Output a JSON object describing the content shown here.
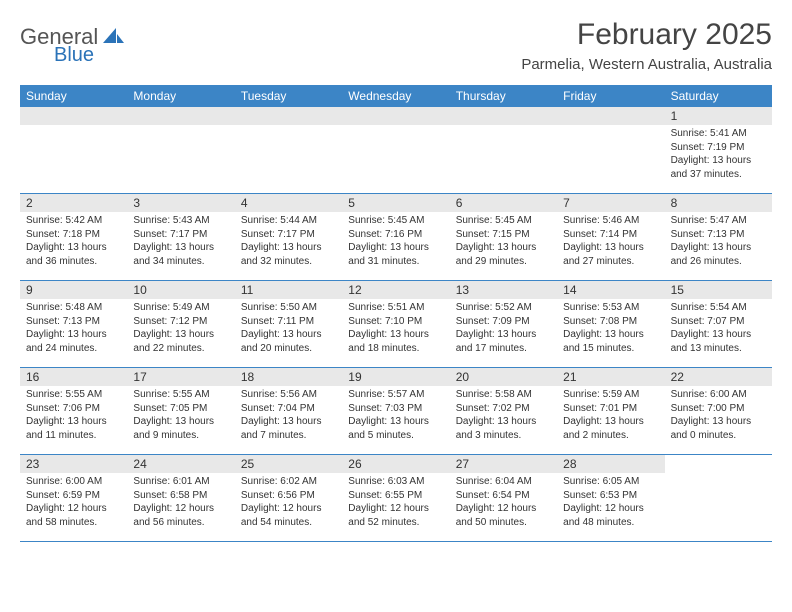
{
  "logo": {
    "text1": "General",
    "text2": "Blue"
  },
  "title": "February 2025",
  "location": "Parmelia, Western Australia, Australia",
  "colors": {
    "header_bg": "#3c85c6",
    "header_text": "#ffffff",
    "daynum_bg": "#e8e8e8",
    "border": "#3c85c6",
    "text": "#333333",
    "logo_gray": "#555555",
    "logo_blue": "#2b73b8"
  },
  "dayNames": [
    "Sunday",
    "Monday",
    "Tuesday",
    "Wednesday",
    "Thursday",
    "Friday",
    "Saturday"
  ],
  "weeks": [
    [
      {
        "empty": true
      },
      {
        "empty": true
      },
      {
        "empty": true
      },
      {
        "empty": true
      },
      {
        "empty": true
      },
      {
        "empty": true
      },
      {
        "day": "1",
        "sunrise": "Sunrise: 5:41 AM",
        "sunset": "Sunset: 7:19 PM",
        "daylight1": "Daylight: 13 hours",
        "daylight2": "and 37 minutes."
      }
    ],
    [
      {
        "day": "2",
        "sunrise": "Sunrise: 5:42 AM",
        "sunset": "Sunset: 7:18 PM",
        "daylight1": "Daylight: 13 hours",
        "daylight2": "and 36 minutes."
      },
      {
        "day": "3",
        "sunrise": "Sunrise: 5:43 AM",
        "sunset": "Sunset: 7:17 PM",
        "daylight1": "Daylight: 13 hours",
        "daylight2": "and 34 minutes."
      },
      {
        "day": "4",
        "sunrise": "Sunrise: 5:44 AM",
        "sunset": "Sunset: 7:17 PM",
        "daylight1": "Daylight: 13 hours",
        "daylight2": "and 32 minutes."
      },
      {
        "day": "5",
        "sunrise": "Sunrise: 5:45 AM",
        "sunset": "Sunset: 7:16 PM",
        "daylight1": "Daylight: 13 hours",
        "daylight2": "and 31 minutes."
      },
      {
        "day": "6",
        "sunrise": "Sunrise: 5:45 AM",
        "sunset": "Sunset: 7:15 PM",
        "daylight1": "Daylight: 13 hours",
        "daylight2": "and 29 minutes."
      },
      {
        "day": "7",
        "sunrise": "Sunrise: 5:46 AM",
        "sunset": "Sunset: 7:14 PM",
        "daylight1": "Daylight: 13 hours",
        "daylight2": "and 27 minutes."
      },
      {
        "day": "8",
        "sunrise": "Sunrise: 5:47 AM",
        "sunset": "Sunset: 7:13 PM",
        "daylight1": "Daylight: 13 hours",
        "daylight2": "and 26 minutes."
      }
    ],
    [
      {
        "day": "9",
        "sunrise": "Sunrise: 5:48 AM",
        "sunset": "Sunset: 7:13 PM",
        "daylight1": "Daylight: 13 hours",
        "daylight2": "and 24 minutes."
      },
      {
        "day": "10",
        "sunrise": "Sunrise: 5:49 AM",
        "sunset": "Sunset: 7:12 PM",
        "daylight1": "Daylight: 13 hours",
        "daylight2": "and 22 minutes."
      },
      {
        "day": "11",
        "sunrise": "Sunrise: 5:50 AM",
        "sunset": "Sunset: 7:11 PM",
        "daylight1": "Daylight: 13 hours",
        "daylight2": "and 20 minutes."
      },
      {
        "day": "12",
        "sunrise": "Sunrise: 5:51 AM",
        "sunset": "Sunset: 7:10 PM",
        "daylight1": "Daylight: 13 hours",
        "daylight2": "and 18 minutes."
      },
      {
        "day": "13",
        "sunrise": "Sunrise: 5:52 AM",
        "sunset": "Sunset: 7:09 PM",
        "daylight1": "Daylight: 13 hours",
        "daylight2": "and 17 minutes."
      },
      {
        "day": "14",
        "sunrise": "Sunrise: 5:53 AM",
        "sunset": "Sunset: 7:08 PM",
        "daylight1": "Daylight: 13 hours",
        "daylight2": "and 15 minutes."
      },
      {
        "day": "15",
        "sunrise": "Sunrise: 5:54 AM",
        "sunset": "Sunset: 7:07 PM",
        "daylight1": "Daylight: 13 hours",
        "daylight2": "and 13 minutes."
      }
    ],
    [
      {
        "day": "16",
        "sunrise": "Sunrise: 5:55 AM",
        "sunset": "Sunset: 7:06 PM",
        "daylight1": "Daylight: 13 hours",
        "daylight2": "and 11 minutes."
      },
      {
        "day": "17",
        "sunrise": "Sunrise: 5:55 AM",
        "sunset": "Sunset: 7:05 PM",
        "daylight1": "Daylight: 13 hours",
        "daylight2": "and 9 minutes."
      },
      {
        "day": "18",
        "sunrise": "Sunrise: 5:56 AM",
        "sunset": "Sunset: 7:04 PM",
        "daylight1": "Daylight: 13 hours",
        "daylight2": "and 7 minutes."
      },
      {
        "day": "19",
        "sunrise": "Sunrise: 5:57 AM",
        "sunset": "Sunset: 7:03 PM",
        "daylight1": "Daylight: 13 hours",
        "daylight2": "and 5 minutes."
      },
      {
        "day": "20",
        "sunrise": "Sunrise: 5:58 AM",
        "sunset": "Sunset: 7:02 PM",
        "daylight1": "Daylight: 13 hours",
        "daylight2": "and 3 minutes."
      },
      {
        "day": "21",
        "sunrise": "Sunrise: 5:59 AM",
        "sunset": "Sunset: 7:01 PM",
        "daylight1": "Daylight: 13 hours",
        "daylight2": "and 2 minutes."
      },
      {
        "day": "22",
        "sunrise": "Sunrise: 6:00 AM",
        "sunset": "Sunset: 7:00 PM",
        "daylight1": "Daylight: 13 hours",
        "daylight2": "and 0 minutes."
      }
    ],
    [
      {
        "day": "23",
        "sunrise": "Sunrise: 6:00 AM",
        "sunset": "Sunset: 6:59 PM",
        "daylight1": "Daylight: 12 hours",
        "daylight2": "and 58 minutes."
      },
      {
        "day": "24",
        "sunrise": "Sunrise: 6:01 AM",
        "sunset": "Sunset: 6:58 PM",
        "daylight1": "Daylight: 12 hours",
        "daylight2": "and 56 minutes."
      },
      {
        "day": "25",
        "sunrise": "Sunrise: 6:02 AM",
        "sunset": "Sunset: 6:56 PM",
        "daylight1": "Daylight: 12 hours",
        "daylight2": "and 54 minutes."
      },
      {
        "day": "26",
        "sunrise": "Sunrise: 6:03 AM",
        "sunset": "Sunset: 6:55 PM",
        "daylight1": "Daylight: 12 hours",
        "daylight2": "and 52 minutes."
      },
      {
        "day": "27",
        "sunrise": "Sunrise: 6:04 AM",
        "sunset": "Sunset: 6:54 PM",
        "daylight1": "Daylight: 12 hours",
        "daylight2": "and 50 minutes."
      },
      {
        "day": "28",
        "sunrise": "Sunrise: 6:05 AM",
        "sunset": "Sunset: 6:53 PM",
        "daylight1": "Daylight: 12 hours",
        "daylight2": "and 48 minutes."
      },
      {
        "empty": true,
        "noBg": true
      }
    ]
  ]
}
